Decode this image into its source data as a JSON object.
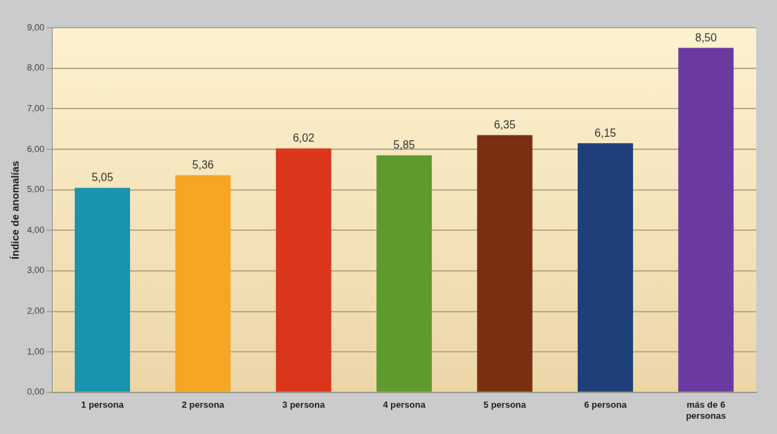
{
  "chart_data": {
    "type": "bar",
    "ylabel": "Índice de anomalías",
    "categories": [
      "1 persona",
      "2 persona",
      "3 persona",
      "4 persona",
      "5 persona",
      "6 persona",
      "más de 6 personas"
    ],
    "values": [
      5.05,
      5.36,
      6.02,
      5.85,
      6.35,
      6.15,
      8.5
    ],
    "colors": [
      "#1a93b0",
      "#f5a623",
      "#d9361c",
      "#5e9a2e",
      "#7a2e12",
      "#1e3f7a",
      "#6b3aa0"
    ],
    "value_labels": [
      "5,05",
      "5,36",
      "6,02",
      "5,85",
      "6,35",
      "6,15",
      "8,50"
    ],
    "ylim": [
      0,
      9
    ],
    "yticks": [
      {
        "value": 0,
        "label": "0,00"
      },
      {
        "value": 1,
        "label": "1,00"
      },
      {
        "value": 2,
        "label": "2,00"
      },
      {
        "value": 3,
        "label": "3,00"
      },
      {
        "value": 4,
        "label": "4,00"
      },
      {
        "value": 5,
        "label": "5,00"
      },
      {
        "value": 6,
        "label": "6,00"
      },
      {
        "value": 7,
        "label": "7,00"
      },
      {
        "value": 8,
        "label": "8,00"
      },
      {
        "value": 9,
        "label": "9,00"
      }
    ],
    "grid": "y",
    "legend": false
  }
}
